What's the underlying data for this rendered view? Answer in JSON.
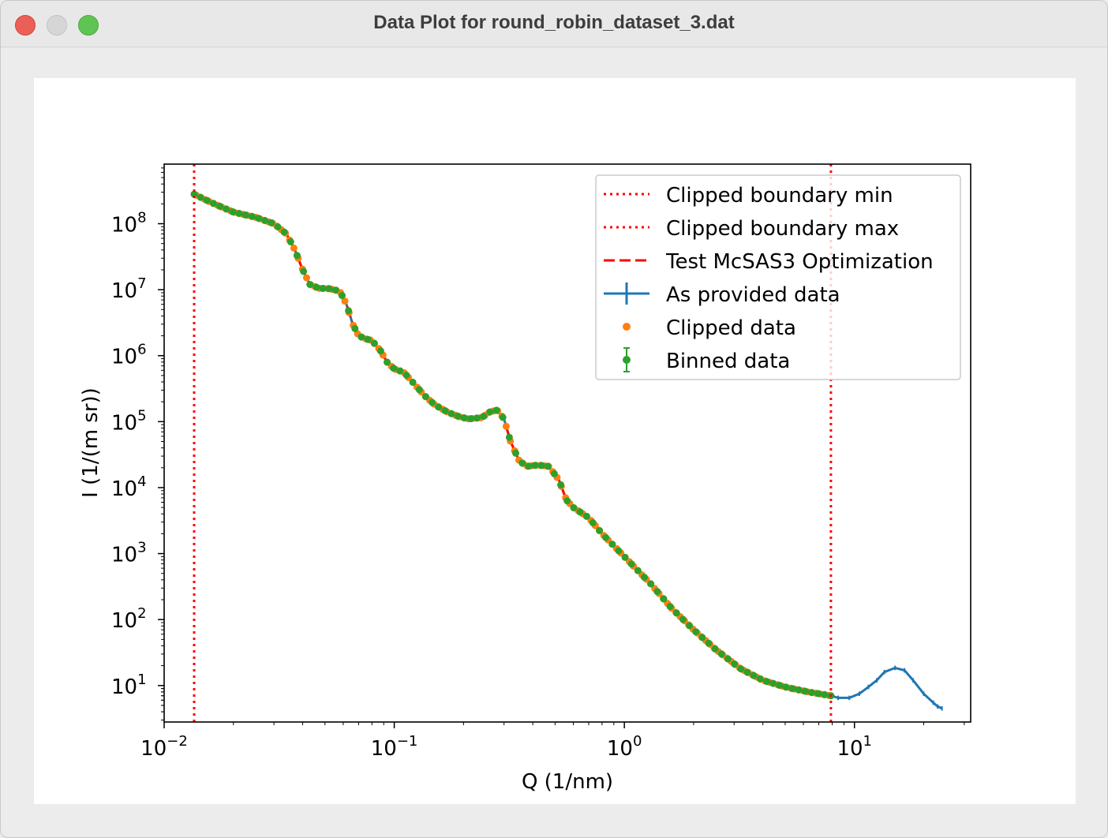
{
  "window": {
    "title": "Data Plot for round_robin_dataset_3.dat"
  },
  "chart_data": {
    "type": "line",
    "xlabel": "Q (1/nm)",
    "ylabel": "I (1/(m sr))",
    "xscale": "log",
    "yscale": "log",
    "xlim": [
      0.01,
      32
    ],
    "ylim": [
      2.8,
      800000000.0
    ],
    "grid": false,
    "legend_position": "top-right",
    "x_ticks": [
      {
        "base": "10",
        "exp": "−2",
        "value": 0.01
      },
      {
        "base": "10",
        "exp": "−1",
        "value": 0.1
      },
      {
        "base": "10",
        "exp": "0",
        "value": 1
      },
      {
        "base": "10",
        "exp": "1",
        "value": 10
      }
    ],
    "y_ticks": [
      {
        "base": "10",
        "exp": "1",
        "value": 10
      },
      {
        "base": "10",
        "exp": "2",
        "value": 100
      },
      {
        "base": "10",
        "exp": "3",
        "value": 1000
      },
      {
        "base": "10",
        "exp": "4",
        "value": 10000
      },
      {
        "base": "10",
        "exp": "5",
        "value": 100000
      },
      {
        "base": "10",
        "exp": "6",
        "value": 1000000
      },
      {
        "base": "10",
        "exp": "7",
        "value": 10000000
      },
      {
        "base": "10",
        "exp": "8",
        "value": 100000000
      }
    ],
    "clip_min": 0.0135,
    "clip_max": 7.9,
    "series": [
      {
        "name": "Clipped boundary min",
        "style": "vertical-dotted",
        "color": "#ff0000",
        "x": 0.0135
      },
      {
        "name": "Clipped boundary max",
        "style": "vertical-dotted",
        "color": "#ff0000",
        "x": 7.9
      },
      {
        "name": "Test McSAS3 Optimization",
        "style": "dashed",
        "color": "#ff0000"
      },
      {
        "name": "As provided data",
        "style": "line-errorbar",
        "color": "#1f77b4",
        "x": [
          0.0135,
          0.016,
          0.02,
          0.025,
          0.03,
          0.034,
          0.037,
          0.04,
          0.043,
          0.047,
          0.052,
          0.058,
          0.062,
          0.066,
          0.07,
          0.075,
          0.08,
          0.087,
          0.093,
          0.1,
          0.11,
          0.12,
          0.135,
          0.15,
          0.17,
          0.19,
          0.21,
          0.24,
          0.26,
          0.28,
          0.3,
          0.32,
          0.35,
          0.38,
          0.42,
          0.47,
          0.52,
          0.56,
          0.6,
          0.7,
          0.8,
          1.0,
          1.3,
          1.6,
          2.0,
          2.5,
          3.2,
          4.0,
          5.0,
          6.3,
          7.9,
          8.5,
          9.5,
          10.5,
          11.5,
          12.5,
          13.5,
          15.0,
          16.5,
          18.0,
          20.0,
          22.0,
          23.0,
          24.0
        ],
        "y": [
          280000000,
          210000000,
          150000000,
          125000000,
          100000000,
          70000000,
          40000000,
          20000000,
          12000000,
          10500000,
          10400000,
          9500000,
          6000000,
          3000000,
          2000000,
          1800000,
          1700000,
          1200000,
          800000,
          630000,
          560000,
          400000,
          250000,
          180000,
          140000,
          120000,
          110000,
          115000,
          140000,
          150000,
          110000,
          50000,
          25000,
          21000,
          22000,
          21000,
          13000,
          6500,
          5000,
          3500,
          2000,
          900,
          350,
          150,
          70,
          35,
          18,
          12,
          9.5,
          8,
          7,
          6.5,
          6.5,
          7.5,
          9.5,
          12,
          16,
          18.5,
          17,
          12,
          7.5,
          5.5,
          4.8,
          4.5
        ]
      },
      {
        "name": "Clipped data",
        "style": "points",
        "color": "#ff7f0e"
      },
      {
        "name": "Binned data",
        "style": "points-errorbar",
        "color": "#2ca02c"
      }
    ]
  }
}
